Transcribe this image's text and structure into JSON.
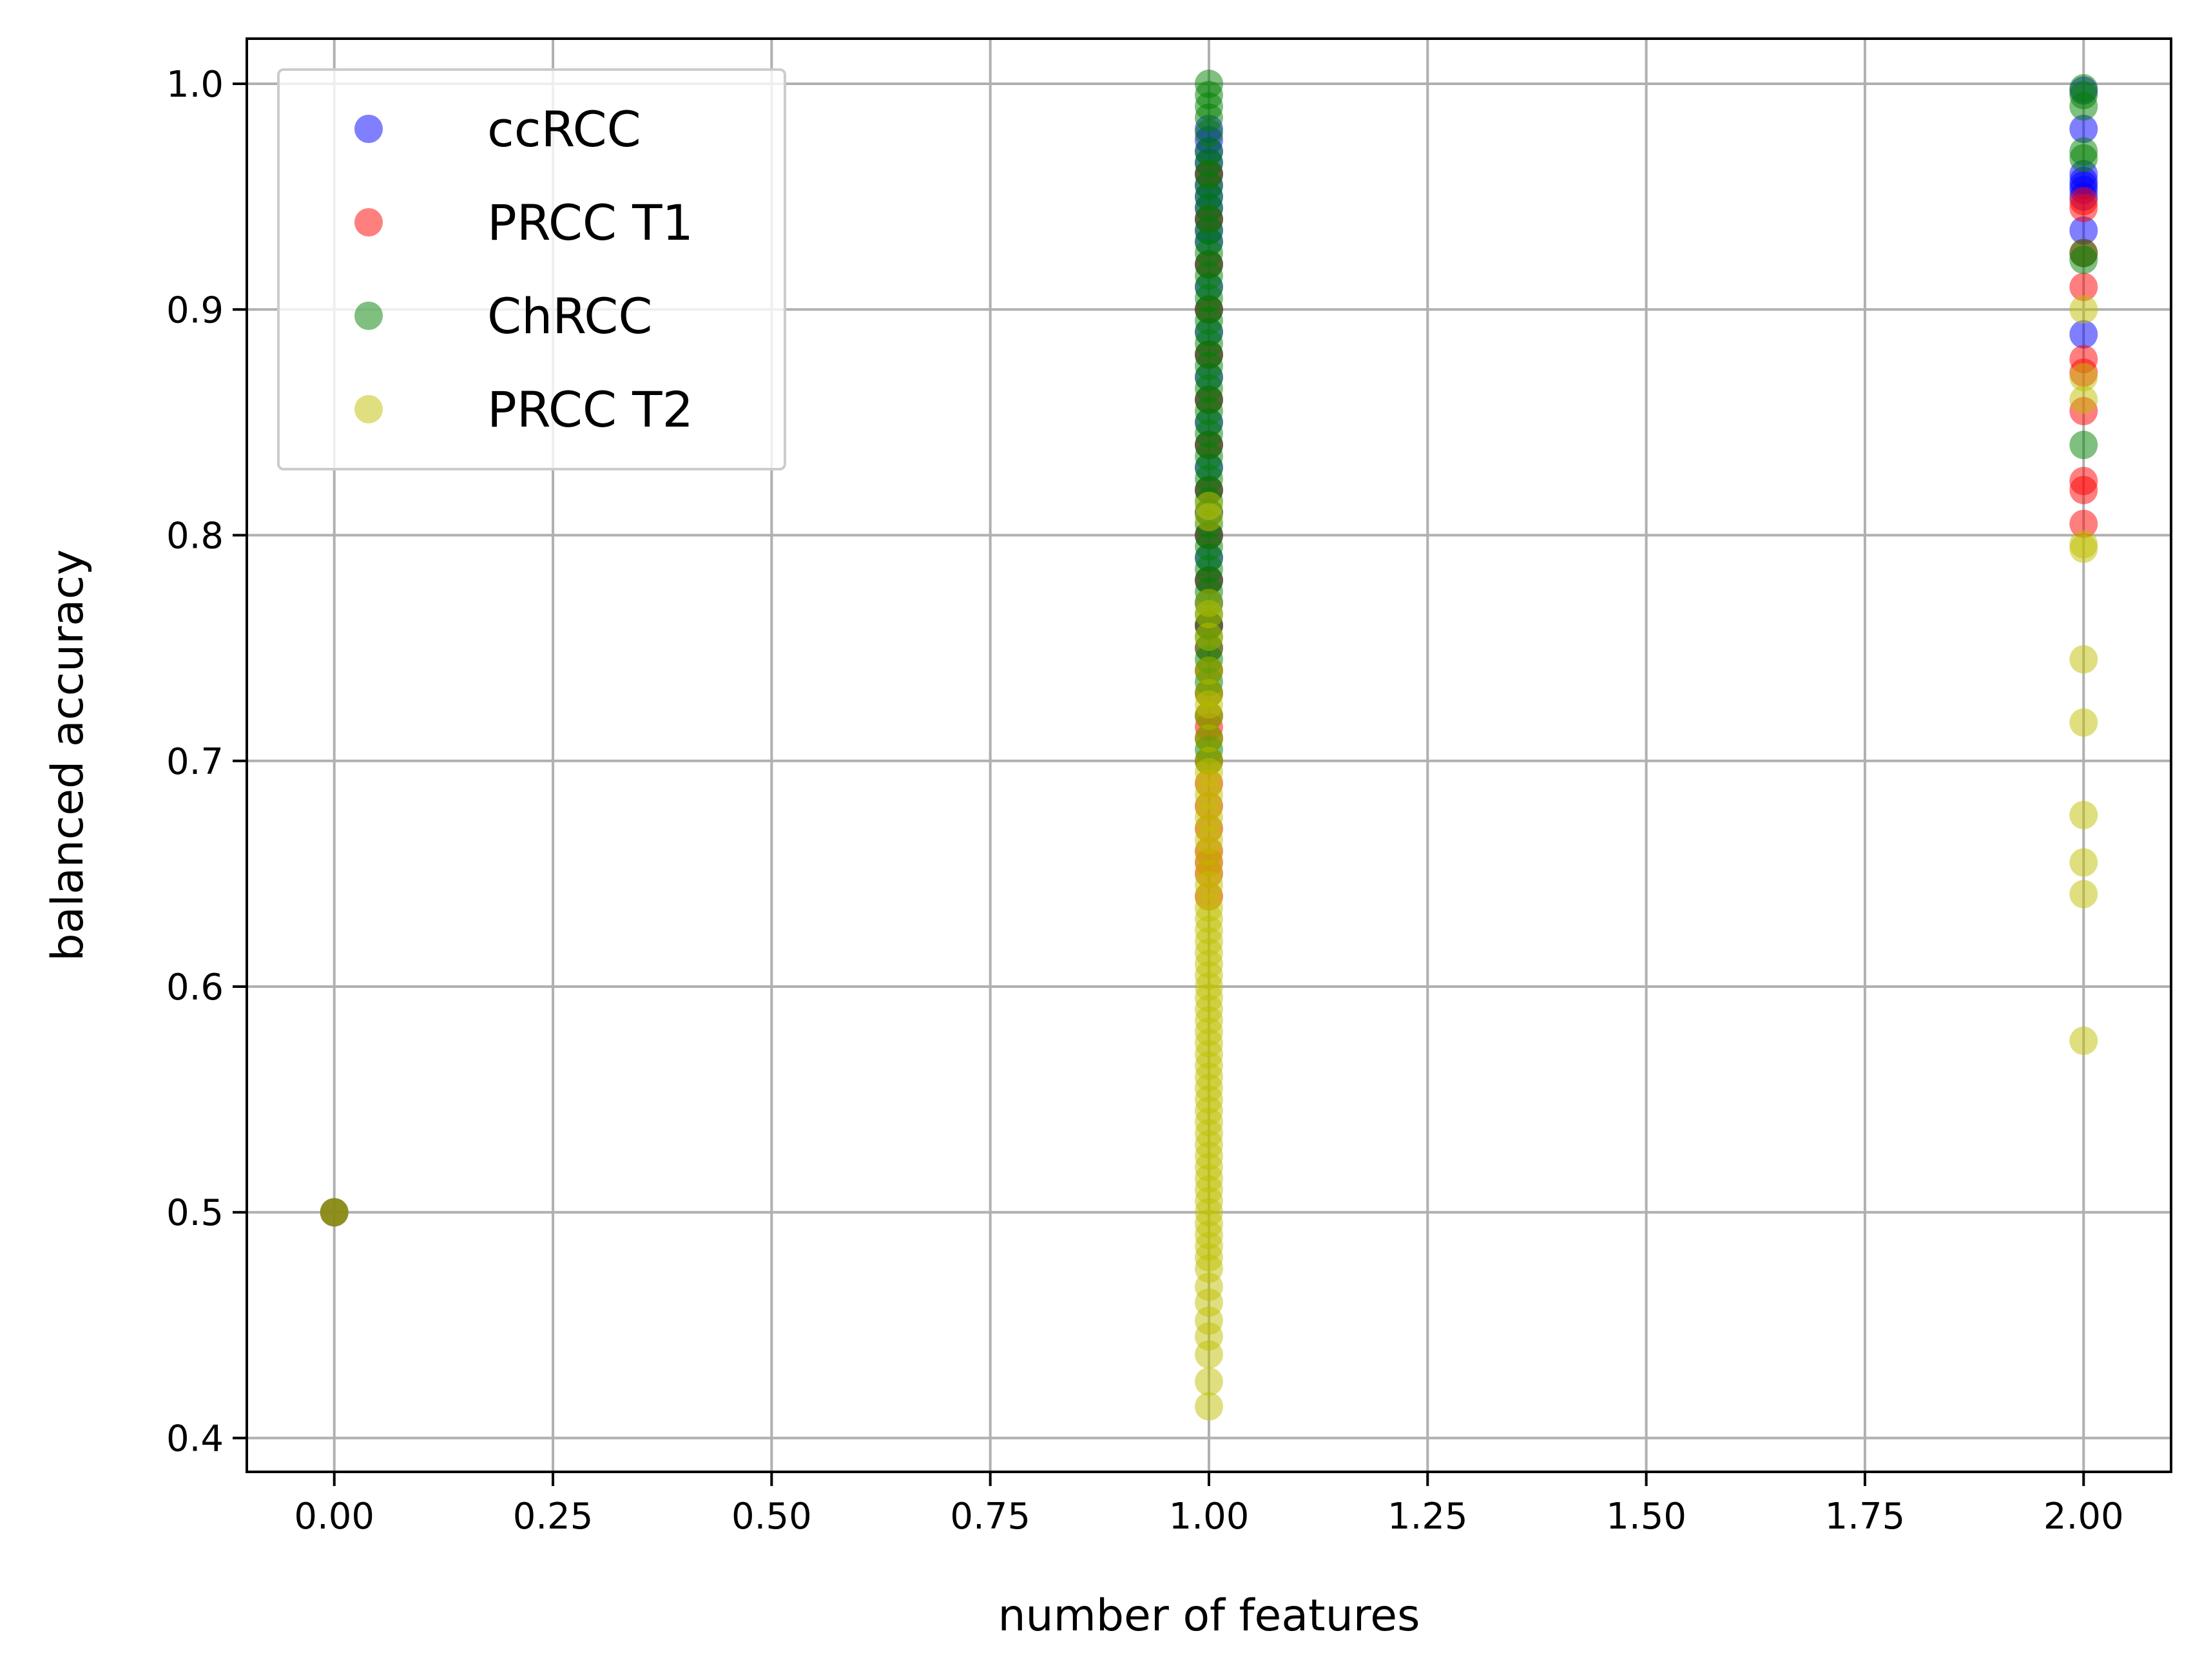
{
  "chart_data": {
    "type": "scatter",
    "title": "",
    "xlabel": "number of features",
    "ylabel": "balanced accuracy",
    "xlim": [
      -0.1,
      2.1
    ],
    "ylim": [
      0.385,
      1.02
    ],
    "xticks": [
      "0.00",
      "0.25",
      "0.50",
      "0.75",
      "1.00",
      "1.25",
      "1.50",
      "1.75",
      "2.00"
    ],
    "yticks": [
      "0.4",
      "0.5",
      "0.6",
      "0.7",
      "0.8",
      "0.9",
      "1.0"
    ],
    "grid": true,
    "legend_position": "top-left",
    "series": [
      {
        "name": "ccRCC",
        "color": "#0000ff",
        "points": [
          {
            "x": 0,
            "y": 0.5
          },
          {
            "x": 1,
            "y": 0.98
          },
          {
            "x": 1,
            "y": 0.975
          },
          {
            "x": 1,
            "y": 0.97
          },
          {
            "x": 1,
            "y": 0.965
          },
          {
            "x": 1,
            "y": 0.96
          },
          {
            "x": 1,
            "y": 0.955
          },
          {
            "x": 1,
            "y": 0.95
          },
          {
            "x": 1,
            "y": 0.945
          },
          {
            "x": 1,
            "y": 0.94
          },
          {
            "x": 1,
            "y": 0.935
          },
          {
            "x": 1,
            "y": 0.93
          },
          {
            "x": 1,
            "y": 0.92
          },
          {
            "x": 1,
            "y": 0.91
          },
          {
            "x": 1,
            "y": 0.9
          },
          {
            "x": 1,
            "y": 0.89
          },
          {
            "x": 1,
            "y": 0.88
          },
          {
            "x": 1,
            "y": 0.87
          },
          {
            "x": 1,
            "y": 0.86
          },
          {
            "x": 1,
            "y": 0.85
          },
          {
            "x": 1,
            "y": 0.84
          },
          {
            "x": 1,
            "y": 0.83
          },
          {
            "x": 1,
            "y": 0.82
          },
          {
            "x": 1,
            "y": 0.81
          },
          {
            "x": 1,
            "y": 0.8
          },
          {
            "x": 1,
            "y": 0.79
          },
          {
            "x": 1,
            "y": 0.78
          },
          {
            "x": 1,
            "y": 0.77
          },
          {
            "x": 1,
            "y": 0.76
          },
          {
            "x": 2,
            "y": 0.997
          },
          {
            "x": 2,
            "y": 0.98
          },
          {
            "x": 2,
            "y": 0.96
          },
          {
            "x": 2,
            "y": 0.957
          },
          {
            "x": 2,
            "y": 0.955
          },
          {
            "x": 2,
            "y": 0.953
          },
          {
            "x": 2,
            "y": 0.95
          },
          {
            "x": 2,
            "y": 0.935
          },
          {
            "x": 2,
            "y": 0.889
          }
        ]
      },
      {
        "name": "PRCC T1",
        "color": "#ff0000",
        "points": [
          {
            "x": 0,
            "y": 0.5
          },
          {
            "x": 1,
            "y": 0.96
          },
          {
            "x": 1,
            "y": 0.94
          },
          {
            "x": 1,
            "y": 0.92
          },
          {
            "x": 1,
            "y": 0.9
          },
          {
            "x": 1,
            "y": 0.88
          },
          {
            "x": 1,
            "y": 0.86
          },
          {
            "x": 1,
            "y": 0.84
          },
          {
            "x": 1,
            "y": 0.82
          },
          {
            "x": 1,
            "y": 0.8
          },
          {
            "x": 1,
            "y": 0.78
          },
          {
            "x": 1,
            "y": 0.76
          },
          {
            "x": 1,
            "y": 0.75
          },
          {
            "x": 1,
            "y": 0.74
          },
          {
            "x": 1,
            "y": 0.73
          },
          {
            "x": 1,
            "y": 0.72
          },
          {
            "x": 1,
            "y": 0.715
          },
          {
            "x": 1,
            "y": 0.71
          },
          {
            "x": 1,
            "y": 0.7
          },
          {
            "x": 1,
            "y": 0.69
          },
          {
            "x": 1,
            "y": 0.68
          },
          {
            "x": 1,
            "y": 0.67
          },
          {
            "x": 1,
            "y": 0.66
          },
          {
            "x": 1,
            "y": 0.655
          },
          {
            "x": 1,
            "y": 0.65
          },
          {
            "x": 1,
            "y": 0.64
          },
          {
            "x": 2,
            "y": 0.948
          },
          {
            "x": 2,
            "y": 0.945
          },
          {
            "x": 2,
            "y": 0.925
          },
          {
            "x": 2,
            "y": 0.91
          },
          {
            "x": 2,
            "y": 0.878
          },
          {
            "x": 2,
            "y": 0.872
          },
          {
            "x": 2,
            "y": 0.855
          },
          {
            "x": 2,
            "y": 0.824
          },
          {
            "x": 2,
            "y": 0.82
          },
          {
            "x": 2,
            "y": 0.805
          }
        ]
      },
      {
        "name": "ChRCC",
        "color": "#008000",
        "points": [
          {
            "x": 0,
            "y": 0.5
          },
          {
            "x": 1,
            "y": 1.0
          },
          {
            "x": 1,
            "y": 0.995
          },
          {
            "x": 1,
            "y": 0.99
          },
          {
            "x": 1,
            "y": 0.985
          },
          {
            "x": 1,
            "y": 0.978
          },
          {
            "x": 1,
            "y": 0.97
          },
          {
            "x": 1,
            "y": 0.965
          },
          {
            "x": 1,
            "y": 0.96
          },
          {
            "x": 1,
            "y": 0.955
          },
          {
            "x": 1,
            "y": 0.95
          },
          {
            "x": 1,
            "y": 0.945
          },
          {
            "x": 1,
            "y": 0.94
          },
          {
            "x": 1,
            "y": 0.935
          },
          {
            "x": 1,
            "y": 0.93
          },
          {
            "x": 1,
            "y": 0.925
          },
          {
            "x": 1,
            "y": 0.92
          },
          {
            "x": 1,
            "y": 0.915
          },
          {
            "x": 1,
            "y": 0.91
          },
          {
            "x": 1,
            "y": 0.905
          },
          {
            "x": 1,
            "y": 0.9
          },
          {
            "x": 1,
            "y": 0.895
          },
          {
            "x": 1,
            "y": 0.89
          },
          {
            "x": 1,
            "y": 0.885
          },
          {
            "x": 1,
            "y": 0.88
          },
          {
            "x": 1,
            "y": 0.875
          },
          {
            "x": 1,
            "y": 0.87
          },
          {
            "x": 1,
            "y": 0.865
          },
          {
            "x": 1,
            "y": 0.86
          },
          {
            "x": 1,
            "y": 0.855
          },
          {
            "x": 1,
            "y": 0.85
          },
          {
            "x": 1,
            "y": 0.845
          },
          {
            "x": 1,
            "y": 0.84
          },
          {
            "x": 1,
            "y": 0.835
          },
          {
            "x": 1,
            "y": 0.83
          },
          {
            "x": 1,
            "y": 0.825
          },
          {
            "x": 1,
            "y": 0.82
          },
          {
            "x": 1,
            "y": 0.815
          },
          {
            "x": 1,
            "y": 0.81
          },
          {
            "x": 1,
            "y": 0.805
          },
          {
            "x": 1,
            "y": 0.8
          },
          {
            "x": 1,
            "y": 0.795
          },
          {
            "x": 1,
            "y": 0.79
          },
          {
            "x": 1,
            "y": 0.785
          },
          {
            "x": 1,
            "y": 0.78
          },
          {
            "x": 1,
            "y": 0.775
          },
          {
            "x": 1,
            "y": 0.77
          },
          {
            "x": 1,
            "y": 0.765
          },
          {
            "x": 1,
            "y": 0.76
          },
          {
            "x": 1,
            "y": 0.755
          },
          {
            "x": 1,
            "y": 0.75
          },
          {
            "x": 1,
            "y": 0.745
          },
          {
            "x": 1,
            "y": 0.74
          },
          {
            "x": 1,
            "y": 0.735
          },
          {
            "x": 1,
            "y": 0.73
          },
          {
            "x": 1,
            "y": 0.72
          },
          {
            "x": 1,
            "y": 0.71
          },
          {
            "x": 1,
            "y": 0.705
          },
          {
            "x": 1,
            "y": 0.7
          },
          {
            "x": 2,
            "y": 0.998
          },
          {
            "x": 2,
            "y": 0.995
          },
          {
            "x": 2,
            "y": 0.99
          },
          {
            "x": 2,
            "y": 0.97
          },
          {
            "x": 2,
            "y": 0.967
          },
          {
            "x": 2,
            "y": 0.925
          },
          {
            "x": 2,
            "y": 0.922
          },
          {
            "x": 2,
            "y": 0.84
          }
        ]
      },
      {
        "name": "PRCC T2",
        "color": "#bfbf00",
        "points": [
          {
            "x": 0,
            "y": 0.5
          },
          {
            "x": 1,
            "y": 0.813
          },
          {
            "x": 1,
            "y": 0.808
          },
          {
            "x": 1,
            "y": 0.77
          },
          {
            "x": 1,
            "y": 0.765
          },
          {
            "x": 1,
            "y": 0.755
          },
          {
            "x": 1,
            "y": 0.74
          },
          {
            "x": 1,
            "y": 0.73
          },
          {
            "x": 1,
            "y": 0.725
          },
          {
            "x": 1,
            "y": 0.72
          },
          {
            "x": 1,
            "y": 0.71
          },
          {
            "x": 1,
            "y": 0.7
          },
          {
            "x": 1,
            "y": 0.695
          },
          {
            "x": 1,
            "y": 0.69
          },
          {
            "x": 1,
            "y": 0.685
          },
          {
            "x": 1,
            "y": 0.68
          },
          {
            "x": 1,
            "y": 0.675
          },
          {
            "x": 1,
            "y": 0.67
          },
          {
            "x": 1,
            "y": 0.665
          },
          {
            "x": 1,
            "y": 0.66
          },
          {
            "x": 1,
            "y": 0.655
          },
          {
            "x": 1,
            "y": 0.65
          },
          {
            "x": 1,
            "y": 0.645
          },
          {
            "x": 1,
            "y": 0.64
          },
          {
            "x": 1,
            "y": 0.635
          },
          {
            "x": 1,
            "y": 0.63
          },
          {
            "x": 1,
            "y": 0.625
          },
          {
            "x": 1,
            "y": 0.62
          },
          {
            "x": 1,
            "y": 0.615
          },
          {
            "x": 1,
            "y": 0.61
          },
          {
            "x": 1,
            "y": 0.605
          },
          {
            "x": 1,
            "y": 0.6
          },
          {
            "x": 1,
            "y": 0.595
          },
          {
            "x": 1,
            "y": 0.59
          },
          {
            "x": 1,
            "y": 0.585
          },
          {
            "x": 1,
            "y": 0.58
          },
          {
            "x": 1,
            "y": 0.575
          },
          {
            "x": 1,
            "y": 0.57
          },
          {
            "x": 1,
            "y": 0.565
          },
          {
            "x": 1,
            "y": 0.56
          },
          {
            "x": 1,
            "y": 0.555
          },
          {
            "x": 1,
            "y": 0.55
          },
          {
            "x": 1,
            "y": 0.545
          },
          {
            "x": 1,
            "y": 0.54
          },
          {
            "x": 1,
            "y": 0.535
          },
          {
            "x": 1,
            "y": 0.53
          },
          {
            "x": 1,
            "y": 0.525
          },
          {
            "x": 1,
            "y": 0.52
          },
          {
            "x": 1,
            "y": 0.515
          },
          {
            "x": 1,
            "y": 0.51
          },
          {
            "x": 1,
            "y": 0.505
          },
          {
            "x": 1,
            "y": 0.5
          },
          {
            "x": 1,
            "y": 0.495
          },
          {
            "x": 1,
            "y": 0.49
          },
          {
            "x": 1,
            "y": 0.485
          },
          {
            "x": 1,
            "y": 0.48
          },
          {
            "x": 1,
            "y": 0.475
          },
          {
            "x": 1,
            "y": 0.467
          },
          {
            "x": 1,
            "y": 0.46
          },
          {
            "x": 1,
            "y": 0.452
          },
          {
            "x": 1,
            "y": 0.445
          },
          {
            "x": 1,
            "y": 0.437
          },
          {
            "x": 1,
            "y": 0.425
          },
          {
            "x": 1,
            "y": 0.414
          },
          {
            "x": 2,
            "y": 0.9
          },
          {
            "x": 2,
            "y": 0.87
          },
          {
            "x": 2,
            "y": 0.86
          },
          {
            "x": 2,
            "y": 0.796
          },
          {
            "x": 2,
            "y": 0.794
          },
          {
            "x": 2,
            "y": 0.745
          },
          {
            "x": 2,
            "y": 0.717
          },
          {
            "x": 2,
            "y": 0.676
          },
          {
            "x": 2,
            "y": 0.655
          },
          {
            "x": 2,
            "y": 0.641
          },
          {
            "x": 2,
            "y": 0.576
          }
        ]
      }
    ]
  }
}
